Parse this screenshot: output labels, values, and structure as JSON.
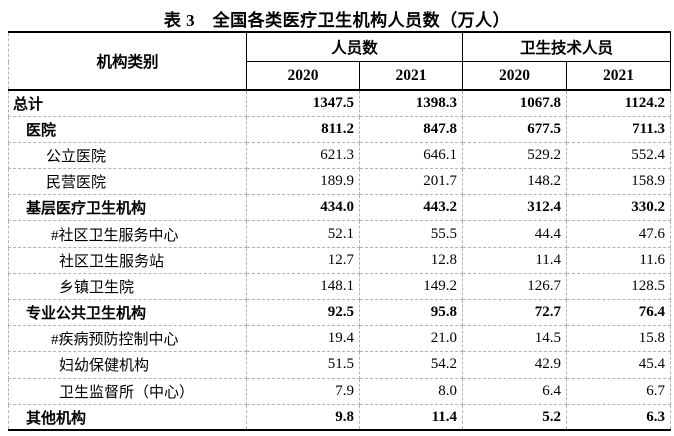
{
  "title": "表 3　全国各类医疗卫生机构人员数（万人）",
  "colors": {
    "text": "#000000",
    "solid_border": "#000000",
    "dashed_grid": "#b3b3b3",
    "background": "#ffffff"
  },
  "table": {
    "header": {
      "category_label": "机构类别",
      "groups": [
        {
          "label": "人员数",
          "years": [
            "2020",
            "2021"
          ]
        },
        {
          "label": "卫生技术人员",
          "years": [
            "2020",
            "2021"
          ]
        }
      ]
    },
    "rows": [
      {
        "label": "总计",
        "indent": 0,
        "bold": true,
        "values": [
          "1347.5",
          "1398.3",
          "1067.8",
          "1124.2"
        ]
      },
      {
        "label": "医院",
        "indent": 1,
        "bold": true,
        "values": [
          "811.2",
          "847.8",
          "677.5",
          "711.3"
        ]
      },
      {
        "label": "公立医院",
        "indent": 2,
        "bold": false,
        "values": [
          "621.3",
          "646.1",
          "529.2",
          "552.4"
        ]
      },
      {
        "label": "民营医院",
        "indent": 2,
        "bold": false,
        "values": [
          "189.9",
          "201.7",
          "148.2",
          "158.9"
        ]
      },
      {
        "label": "基层医疗卫生机构",
        "indent": 1,
        "bold": true,
        "values": [
          "434.0",
          "443.2",
          "312.4",
          "330.2"
        ]
      },
      {
        "label": "#社区卫生服务中心",
        "indent": 3,
        "bold": false,
        "values": [
          "52.1",
          "55.5",
          "44.4",
          "47.6"
        ]
      },
      {
        "label": "社区卫生服务站",
        "indent": 4,
        "bold": false,
        "values": [
          "12.7",
          "12.8",
          "11.4",
          "11.6"
        ]
      },
      {
        "label": "乡镇卫生院",
        "indent": 4,
        "bold": false,
        "values": [
          "148.1",
          "149.2",
          "126.7",
          "128.5"
        ]
      },
      {
        "label": "专业公共卫生机构",
        "indent": 1,
        "bold": true,
        "values": [
          "92.5",
          "95.8",
          "72.7",
          "76.4"
        ]
      },
      {
        "label": "#疾病预防控制中心",
        "indent": 3,
        "bold": false,
        "values": [
          "19.4",
          "21.0",
          "14.5",
          "15.8"
        ]
      },
      {
        "label": "妇幼保健机构",
        "indent": 4,
        "bold": false,
        "values": [
          "51.5",
          "54.2",
          "42.9",
          "45.4"
        ]
      },
      {
        "label": "卫生监督所（中心）",
        "indent": 4,
        "bold": false,
        "values": [
          "7.9",
          "8.0",
          "6.4",
          "6.7"
        ]
      },
      {
        "label": "其他机构",
        "indent": 1,
        "bold": true,
        "values": [
          "9.8",
          "11.4",
          "5.2",
          "6.3"
        ]
      }
    ]
  }
}
